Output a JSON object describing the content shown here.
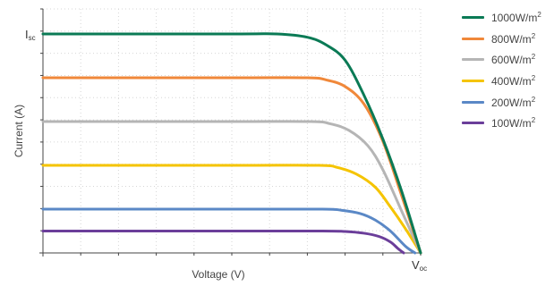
{
  "chart_data": {
    "type": "line",
    "xlabel": "Voltage (V)",
    "ylabel": "Current (A)",
    "x_tick_labels": [
      {
        "main": "V",
        "sub": "oc"
      }
    ],
    "y_tick_labels": [
      {
        "main": "I",
        "sub": "sc"
      }
    ],
    "grid": true,
    "legend_position": "top-right",
    "x": [
      0,
      0.5,
      0.6,
      0.7,
      0.8,
      0.85,
      0.9,
      0.95,
      0.97,
      1.0
    ],
    "series": [
      {
        "name": "1000W/m",
        "sup": "2",
        "color": "#0a7a55",
        "lw": 3,
        "x": [
          0,
          0.5,
          0.62,
          0.7,
          0.75,
          0.8,
          0.85,
          0.9,
          0.95,
          1.0
        ],
        "values": [
          1.0,
          1.0,
          1.0,
          0.985,
          0.95,
          0.88,
          0.72,
          0.52,
          0.28,
          0.0
        ]
      },
      {
        "name": "800W/m",
        "sup": "2",
        "color": "#f0883a",
        "lw": 3,
        "x": [
          0,
          0.5,
          0.7,
          0.75,
          0.8,
          0.85,
          0.9,
          0.95,
          1.0
        ],
        "values": [
          0.8,
          0.8,
          0.8,
          0.79,
          0.76,
          0.68,
          0.51,
          0.26,
          0.0
        ]
      },
      {
        "name": "600W/m",
        "sup": "2",
        "color": "#b5b5b5",
        "lw": 3,
        "x": [
          0,
          0.5,
          0.71,
          0.76,
          0.81,
          0.86,
          0.9,
          0.95,
          1.0
        ],
        "values": [
          0.6,
          0.6,
          0.6,
          0.59,
          0.56,
          0.49,
          0.38,
          0.19,
          0.0
        ]
      },
      {
        "name": "400W/m",
        "sup": "2",
        "color": "#f5c400",
        "lw": 3,
        "x": [
          0,
          0.5,
          0.73,
          0.78,
          0.83,
          0.88,
          0.92,
          0.96,
          1.0
        ],
        "values": [
          0.4,
          0.4,
          0.4,
          0.39,
          0.36,
          0.3,
          0.21,
          0.11,
          0.0
        ]
      },
      {
        "name": "200W/m",
        "sup": "2",
        "color": "#5a88c6",
        "lw": 3,
        "x": [
          0,
          0.5,
          0.74,
          0.79,
          0.84,
          0.88,
          0.92,
          0.96,
          0.985
        ],
        "values": [
          0.2,
          0.2,
          0.2,
          0.195,
          0.18,
          0.15,
          0.1,
          0.03,
          0.0
        ]
      },
      {
        "name": "100W/m",
        "sup": "2",
        "color": "#6b3e9a",
        "lw": 3,
        "x": [
          0,
          0.5,
          0.74,
          0.8,
          0.85,
          0.89,
          0.92,
          0.94,
          0.955
        ],
        "values": [
          0.1,
          0.1,
          0.1,
          0.098,
          0.09,
          0.075,
          0.05,
          0.02,
          0.0
        ]
      }
    ]
  }
}
